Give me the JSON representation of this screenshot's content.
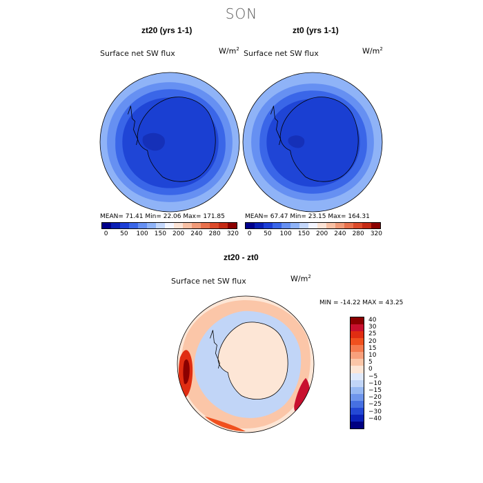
{
  "title": "SON",
  "panels": [
    {
      "name": "zt20",
      "title": "zt20 (yrs 1-1)",
      "variable": "Surface net SW flux",
      "units_base": "W/m",
      "units_exp": "2",
      "stats": "MEAN=  71.41   Min=   22.06   Max= 171.85",
      "colors": {
        "outer": "#8fb3f7",
        "mid": "#6690f2",
        "inner": "#3a66e8",
        "core": "#1f45d6",
        "land": "#1a3fd2",
        "deep": "#1530b8"
      }
    },
    {
      "name": "zt0",
      "title": "zt0 (yrs 1-1)",
      "variable": "Surface net SW flux",
      "units_base": "W/m",
      "units_exp": "2",
      "stats": "MEAN=  67.47   Min=   23.15   Max= 164.31",
      "colors": {
        "outer": "#8fb3f7",
        "mid": "#6690f2",
        "inner": "#3a66e8",
        "core": "#1f45d6",
        "land": "#1a3fd2",
        "deep": "#1530b8"
      }
    }
  ],
  "shared_colorbar": {
    "colors": [
      "#00008b",
      "#0a1fb4",
      "#1d3fd6",
      "#3a66e8",
      "#6690f2",
      "#8fb3f7",
      "#c4d7fb",
      "#f3f5ff",
      "#fbe3d6",
      "#f8c0a4",
      "#f09a78",
      "#e8714d",
      "#dc4a2a",
      "#c52a14",
      "#8b0000"
    ],
    "labels": [
      "0",
      "50",
      "100",
      "150",
      "200",
      "240",
      "280",
      "320"
    ]
  },
  "diff": {
    "title": "zt20 - zt0",
    "variable": "Surface net SW flux",
    "units_base": "W/m",
    "units_exp": "2",
    "stats": "MIN = -14.22  MAX =   43.25",
    "colorbar": {
      "colors": [
        "#8b0000",
        "#c8102e",
        "#e02d12",
        "#f0501e",
        "#f57a4e",
        "#f8a07c",
        "#fbc6a8",
        "#fde6d6",
        "#dfe9fb",
        "#c1d5f7",
        "#97b8f2",
        "#6e95ec",
        "#4670e2",
        "#2448d4",
        "#0b22b8",
        "#000080"
      ],
      "labels": [
        "40",
        "30",
        "25",
        "20",
        "15",
        "10",
        "5",
        "0",
        "-5",
        "-10",
        "-15",
        "-20",
        "-25",
        "-30",
        "-40"
      ]
    }
  }
}
